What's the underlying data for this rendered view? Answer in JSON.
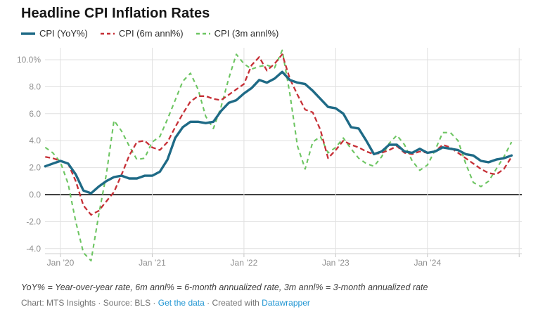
{
  "header": {
    "title": "Headline CPI Inflation Rates"
  },
  "footer": {
    "note": "YoY% = Year-over-year rate, 6m annl% = 6-month annualized rate, 3m annl% = 3-month annualized rate",
    "attribution_parts": [
      {
        "text": "Chart: MTS Insights",
        "link": false
      },
      {
        "text": " · ",
        "link": false
      },
      {
        "text": "Source: BLS",
        "link": false
      },
      {
        "text": " · ",
        "link": false
      },
      {
        "text": "Get the data",
        "link": true
      },
      {
        "text": " · ",
        "link": false
      },
      {
        "text": "Created with ",
        "link": false
      },
      {
        "text": "Datawrapper",
        "link": true
      }
    ]
  },
  "colors": {
    "yoy": "#1e6a86",
    "annl6m": "#c62f36",
    "annl3m": "#6dc562",
    "grid": "#e0e0e0",
    "zero_line": "#000000",
    "axis_text": "#8f8f8f",
    "link_blue": "#2196d3"
  },
  "chart_data": {
    "type": "line",
    "title": "Headline CPI Inflation Rates",
    "xlabel": "",
    "ylabel": "",
    "grid": "on",
    "legend_position": "top",
    "ylim": [
      -4.6,
      10.9
    ],
    "x": [
      "2019-11",
      "2019-12",
      "2020-01",
      "2020-02",
      "2020-03",
      "2020-04",
      "2020-05",
      "2020-06",
      "2020-07",
      "2020-08",
      "2020-09",
      "2020-10",
      "2020-11",
      "2020-12",
      "2021-01",
      "2021-02",
      "2021-03",
      "2021-04",
      "2021-05",
      "2021-06",
      "2021-07",
      "2021-08",
      "2021-09",
      "2021-10",
      "2021-11",
      "2021-12",
      "2022-01",
      "2022-02",
      "2022-03",
      "2022-04",
      "2022-05",
      "2022-06",
      "2022-07",
      "2022-08",
      "2022-09",
      "2022-10",
      "2022-11",
      "2022-12",
      "2023-01",
      "2023-02",
      "2023-03",
      "2023-04",
      "2023-05",
      "2023-06",
      "2023-07",
      "2023-08",
      "2023-09",
      "2023-10",
      "2023-11",
      "2023-12",
      "2024-01",
      "2024-02",
      "2024-03",
      "2024-04",
      "2024-05",
      "2024-06",
      "2024-07",
      "2024-08",
      "2024-09",
      "2024-10",
      "2024-11",
      "2024-12"
    ],
    "series": [
      {
        "name": "CPI (YoY%)",
        "color": "#1e6a86",
        "dash": null,
        "width": 3.4,
        "values": [
          2.1,
          2.3,
          2.5,
          2.3,
          1.5,
          0.3,
          0.1,
          0.6,
          1.0,
          1.3,
          1.4,
          1.2,
          1.2,
          1.4,
          1.4,
          1.7,
          2.6,
          4.2,
          5.0,
          5.4,
          5.4,
          5.3,
          5.4,
          6.2,
          6.8,
          7.0,
          7.5,
          7.9,
          8.5,
          8.3,
          8.6,
          9.1,
          8.5,
          8.3,
          8.2,
          7.7,
          7.1,
          6.5,
          6.4,
          6.0,
          5.0,
          4.9,
          4.0,
          3.0,
          3.2,
          3.7,
          3.7,
          3.2,
          3.1,
          3.4,
          3.1,
          3.2,
          3.5,
          3.4,
          3.3,
          3.0,
          2.9,
          2.5,
          2.4,
          2.6,
          2.7,
          2.9
        ]
      },
      {
        "name": "CPI (6m annl%)",
        "color": "#c62f36",
        "dash": "7 4",
        "width": 2.3,
        "values": [
          2.8,
          2.7,
          2.5,
          2.3,
          1.0,
          -0.8,
          -1.5,
          -1.2,
          -0.5,
          0.2,
          1.5,
          2.9,
          3.9,
          4.0,
          3.5,
          3.3,
          3.9,
          5.0,
          6.0,
          6.9,
          7.3,
          7.3,
          7.1,
          7.0,
          7.4,
          7.8,
          8.2,
          9.6,
          10.2,
          9.2,
          9.7,
          10.4,
          8.6,
          7.4,
          6.3,
          6.1,
          4.8,
          2.7,
          3.3,
          4.0,
          3.7,
          3.5,
          3.2,
          3.0,
          3.1,
          3.3,
          3.6,
          3.1,
          3.0,
          3.2,
          3.1,
          3.2,
          3.7,
          3.5,
          3.1,
          2.7,
          2.3,
          1.9,
          1.6,
          1.5,
          1.9,
          2.8
        ]
      },
      {
        "name": "CPI (3m annl%)",
        "color": "#6dc562",
        "dash": "6 5",
        "width": 2.1,
        "values": [
          3.5,
          3.1,
          2.4,
          0.8,
          -2.0,
          -4.3,
          -4.9,
          -1.5,
          1.5,
          5.5,
          4.7,
          3.6,
          2.6,
          2.7,
          3.9,
          4.3,
          5.6,
          7.0,
          8.4,
          9.0,
          7.8,
          5.8,
          4.9,
          6.5,
          8.6,
          10.4,
          9.7,
          9.3,
          9.5,
          9.6,
          9.4,
          10.7,
          7.5,
          3.6,
          1.9,
          3.9,
          4.3,
          3.1,
          3.5,
          4.2,
          3.4,
          2.7,
          2.3,
          2.1,
          2.8,
          3.8,
          4.4,
          3.7,
          2.5,
          1.8,
          2.2,
          3.3,
          4.6,
          4.6,
          4.0,
          2.3,
          0.9,
          0.6,
          1.0,
          1.9,
          2.8,
          3.9
        ]
      }
    ],
    "y_ticks": [
      {
        "label": "10.0%",
        "value": 10
      },
      {
        "label": "8.0",
        "value": 8
      },
      {
        "label": "6.0",
        "value": 6
      },
      {
        "label": "4.0",
        "value": 4
      },
      {
        "label": "2.0",
        "value": 2
      },
      {
        "label": "0.0",
        "value": 0
      },
      {
        "label": "-2.0",
        "value": -2
      },
      {
        "label": "-4.0",
        "value": -4
      }
    ],
    "x_ticks": [
      {
        "label": "Jan ’20",
        "index": 2
      },
      {
        "label": "Jan ’21",
        "index": 14
      },
      {
        "label": "Jan ’22",
        "index": 26
      },
      {
        "label": "Jan ’23",
        "index": 38
      },
      {
        "label": "Jan ’24",
        "index": 50
      },
      {
        "label": "",
        "index": 62
      }
    ]
  }
}
